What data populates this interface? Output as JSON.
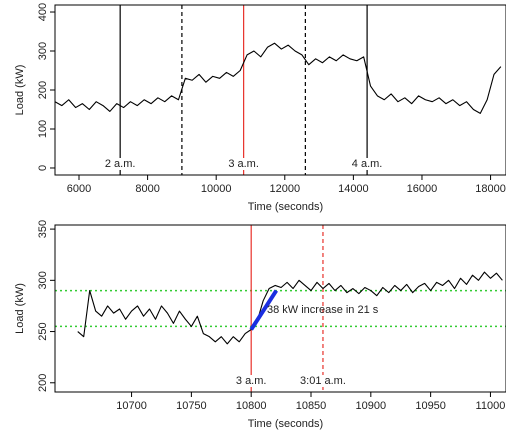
{
  "chart_data": [
    {
      "type": "line",
      "xlabel": "Time (seconds)",
      "ylabel": "Load (kW)",
      "xlim": [
        5300,
        18450
      ],
      "ylim": [
        -18,
        418
      ],
      "xticks": [
        6000,
        8000,
        10000,
        12000,
        14000,
        16000,
        18000
      ],
      "yticks": [
        0,
        100,
        200,
        300,
        400
      ],
      "series": [
        {
          "color": "#000000",
          "x": [
            5300,
            5500,
            5700,
            5900,
            6100,
            6300,
            6500,
            6700,
            6900,
            7100,
            7300,
            7500,
            7700,
            7900,
            8100,
            8300,
            8500,
            8700,
            8900,
            9100,
            9300,
            9500,
            9700,
            9900,
            10100,
            10300,
            10500,
            10700,
            10900,
            11100,
            11300,
            11500,
            11700,
            11900,
            12100,
            12300,
            12500,
            12700,
            12900,
            13100,
            13300,
            13500,
            13700,
            13900,
            14100,
            14300,
            14500,
            14700,
            14900,
            15100,
            15300,
            15500,
            15700,
            15900,
            16100,
            16300,
            16500,
            16700,
            16900,
            17100,
            17300,
            17500,
            17700,
            17900,
            18100,
            18300
          ],
          "values": [
            170,
            160,
            175,
            155,
            165,
            150,
            170,
            160,
            145,
            165,
            155,
            170,
            160,
            175,
            165,
            180,
            170,
            185,
            175,
            230,
            225,
            240,
            220,
            235,
            230,
            245,
            235,
            250,
            290,
            300,
            285,
            310,
            320,
            305,
            315,
            300,
            290,
            265,
            280,
            270,
            285,
            275,
            290,
            280,
            275,
            285,
            210,
            185,
            175,
            190,
            170,
            180,
            165,
            185,
            175,
            170,
            180,
            165,
            175,
            160,
            170,
            150,
            140,
            175,
            240,
            260
          ]
        }
      ],
      "vlines": [
        {
          "x": 7200,
          "color": "#000000",
          "style": "solid",
          "label": "2 a.m."
        },
        {
          "x": 9000,
          "color": "#000000",
          "style": "dashed"
        },
        {
          "x": 10800,
          "color": "#e8302a",
          "style": "solid",
          "label": "3 a.m."
        },
        {
          "x": 12600,
          "color": "#000000",
          "style": "dashed"
        },
        {
          "x": 14400,
          "color": "#000000",
          "style": "solid",
          "label": "4 a.m."
        }
      ]
    },
    {
      "type": "line",
      "xlabel": "Time (seconds)",
      "ylabel": "Load (kW)",
      "xlim": [
        10636,
        11013
      ],
      "ylim": [
        191,
        354
      ],
      "xticks": [
        10700,
        10750,
        10800,
        10850,
        10900,
        10950,
        11000
      ],
      "yticks": [
        200,
        250,
        300,
        350
      ],
      "hlines": [
        {
          "y": 255,
          "color": "#33cc33",
          "style": "dotted"
        },
        {
          "y": 290,
          "color": "#33cc33",
          "style": "dotted"
        }
      ],
      "series": [
        {
          "color": "#000000",
          "x": [
            10655,
            10660,
            10665,
            10670,
            10675,
            10680,
            10685,
            10690,
            10695,
            10700,
            10705,
            10710,
            10715,
            10720,
            10725,
            10730,
            10735,
            10740,
            10745,
            10750,
            10755,
            10760,
            10765,
            10770,
            10775,
            10780,
            10785,
            10790,
            10795,
            10800,
            10805,
            10810,
            10815,
            10820,
            10825,
            10830,
            10835,
            10840,
            10845,
            10850,
            10855,
            10860,
            10865,
            10870,
            10875,
            10880,
            10885,
            10890,
            10895,
            10900,
            10905,
            10910,
            10915,
            10920,
            10925,
            10930,
            10935,
            10940,
            10945,
            10950,
            10955,
            10960,
            10965,
            10970,
            10975,
            10980,
            10985,
            10990,
            10995,
            11000,
            11005,
            11010
          ],
          "values": [
            250,
            245,
            290,
            270,
            265,
            275,
            268,
            272,
            262,
            270,
            275,
            265,
            272,
            262,
            275,
            268,
            258,
            270,
            262,
            255,
            265,
            248,
            245,
            240,
            245,
            238,
            245,
            240,
            248,
            252,
            260,
            280,
            292,
            295,
            293,
            298,
            292,
            300,
            295,
            290,
            298,
            292,
            297,
            290,
            295,
            288,
            292,
            287,
            293,
            290,
            285,
            293,
            288,
            295,
            290,
            296,
            288,
            294,
            297,
            290,
            298,
            295,
            300,
            292,
            302,
            296,
            305,
            300,
            308,
            302,
            307,
            300
          ]
        },
        {
          "color": "#1a2ee0",
          "width": 4,
          "x": [
            10800,
            10821
          ],
          "values": [
            252,
            290
          ]
        }
      ],
      "vlines": [
        {
          "x": 10800,
          "color": "#e8302a",
          "style": "solid",
          "label": "3 a.m."
        },
        {
          "x": 10860,
          "color": "#e8302a",
          "style": "dashed",
          "label": "3:01 a.m."
        }
      ],
      "annotation": {
        "text": "38 kW increase in 21 s",
        "color": "#1a2ee0"
      }
    }
  ]
}
